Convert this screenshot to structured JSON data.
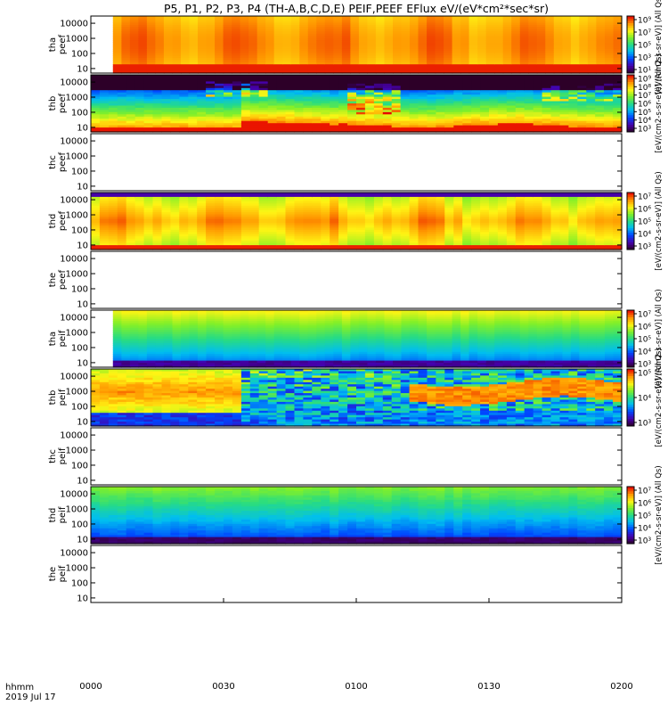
{
  "title": "P5, P1, P2, P3, P4 (TH-A,B,C,D,E) PEIF,PEEF EFlux eV/(eV*cm²*sec*sr)",
  "chart_data": [
    {
      "type": "heatmap",
      "ylabel": [
        "tha",
        "peef"
      ],
      "yticks": [
        "10000",
        "1000",
        "100",
        "10"
      ],
      "ylim": [
        5,
        30000
      ],
      "ylog": true,
      "data_start": "0005",
      "profile": "tha_e",
      "cbar": {
        "title": "[eV/(cm2-s-sr-eV)] (All Qs)",
        "ticks": [
          "10⁹",
          "10⁷",
          "10⁵",
          "10³",
          "10¹"
        ]
      }
    },
    {
      "type": "heatmap",
      "ylabel": [
        "thb",
        "peef"
      ],
      "yticks": [
        "10000",
        "1000",
        "100",
        "10"
      ],
      "ylim": [
        5,
        30000
      ],
      "ylog": true,
      "data_start": "0000",
      "profile": "thb_e",
      "cbar": {
        "title": "[eV/(cm2-s-sr-eV)] (All Qs)",
        "ticks": [
          "10⁹",
          "10⁸",
          "10⁷",
          "10⁶",
          "10⁵",
          "10⁴",
          "10³"
        ]
      }
    },
    {
      "type": "heatmap",
      "ylabel": [
        "thc",
        "peef"
      ],
      "yticks": [
        "10000",
        "1000",
        "100",
        "10"
      ],
      "ylim": [
        5,
        30000
      ],
      "ylog": true,
      "data_start": "",
      "profile": "empty",
      "cbar": null
    },
    {
      "type": "heatmap",
      "ylabel": [
        "thd",
        "peef"
      ],
      "yticks": [
        "10000",
        "1000",
        "100",
        "10"
      ],
      "ylim": [
        5,
        30000
      ],
      "ylog": true,
      "data_start": "0000",
      "profile": "thd_e",
      "cbar": {
        "title": "[eV/(cm2-s-sr-eV)] (All Qs)",
        "ticks": [
          "10⁷",
          "10⁶",
          "10⁵",
          "10⁴",
          "10³"
        ]
      }
    },
    {
      "type": "heatmap",
      "ylabel": [
        "the",
        "peef"
      ],
      "yticks": [
        "10000",
        "1000",
        "100",
        "10"
      ],
      "ylim": [
        5,
        30000
      ],
      "ylog": true,
      "data_start": "",
      "profile": "empty",
      "cbar": null
    },
    {
      "type": "heatmap",
      "ylabel": [
        "tha",
        "peif"
      ],
      "yticks": [
        "10000",
        "1000",
        "100",
        "10"
      ],
      "ylim": [
        5,
        30000
      ],
      "ylog": true,
      "data_start": "0005",
      "profile": "tha_i",
      "cbar": {
        "title": "[eV/(cm2-s-sr-eV)] (All Qs)",
        "ticks": [
          "10⁷",
          "10⁶",
          "10⁵",
          "10⁴",
          "10³"
        ]
      }
    },
    {
      "type": "heatmap",
      "ylabel": [
        "thb",
        "peif"
      ],
      "yticks": [
        "10000",
        "1000",
        "100",
        "10"
      ],
      "ylim": [
        5,
        30000
      ],
      "ylog": true,
      "data_start": "0000",
      "profile": "thb_i",
      "cbar": {
        "title": "[eV/(cm2-s-sr-eV)] (All Qs)",
        "ticks": [
          "10⁵",
          "10⁴",
          "10³"
        ]
      }
    },
    {
      "type": "heatmap",
      "ylabel": [
        "thc",
        "peif"
      ],
      "yticks": [
        "10000",
        "1000",
        "100",
        "10"
      ],
      "ylim": [
        5,
        30000
      ],
      "ylog": true,
      "data_start": "",
      "profile": "empty",
      "cbar": null
    },
    {
      "type": "heatmap",
      "ylabel": [
        "thd",
        "peif"
      ],
      "yticks": [
        "10000",
        "1000",
        "100",
        "10"
      ],
      "ylim": [
        5,
        30000
      ],
      "ylog": true,
      "data_start": "0000",
      "profile": "thd_i",
      "cbar": {
        "title": "[eV/(cm2-s-sr-eV)] (All Qs)",
        "ticks": [
          "10⁷",
          "10⁶",
          "10⁵",
          "10⁴",
          "10³"
        ]
      }
    },
    {
      "type": "heatmap",
      "ylabel": [
        "the",
        "peif"
      ],
      "yticks": [
        "10000",
        "1000",
        "100",
        "10"
      ],
      "ylim": [
        5,
        30000
      ],
      "ylog": true,
      "data_start": "",
      "profile": "empty",
      "cbar": null
    }
  ],
  "xaxis": {
    "ticks": [
      "0000",
      "0030",
      "0100",
      "0130",
      "0200"
    ],
    "label_top": "hhmm",
    "label_bottom": "2019 Jul 17"
  }
}
